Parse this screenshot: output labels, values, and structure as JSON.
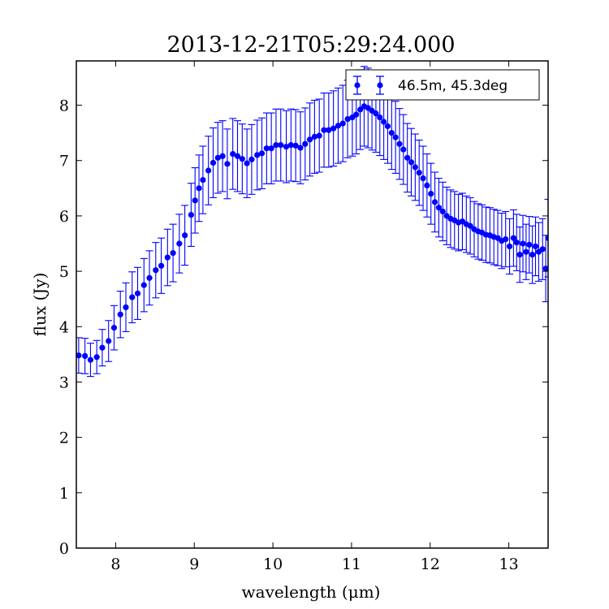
{
  "chart_data": {
    "type": "scatter",
    "title": "2013-12-21T05:29:24.000",
    "xlabel": "wavelength (μm)",
    "ylabel": "flux (Jy)",
    "xlim": [
      7.5,
      13.5
    ],
    "ylim": [
      0,
      8.8
    ],
    "xticks": [
      8,
      9,
      10,
      11,
      12,
      13
    ],
    "yticks": [
      0,
      1,
      2,
      3,
      4,
      5,
      6,
      7,
      8
    ],
    "grid": false,
    "legend_position": "top-right",
    "series": [
      {
        "name": "46.5m, 45.3deg",
        "color": "#0000ff",
        "marker": "circle",
        "error_bars": true,
        "points": [
          {
            "x": 7.53,
            "y": 3.48,
            "err": 0.32
          },
          {
            "x": 7.61,
            "y": 3.47,
            "err": 0.32
          },
          {
            "x": 7.68,
            "y": 3.4,
            "err": 0.3
          },
          {
            "x": 7.76,
            "y": 3.45,
            "err": 0.3
          },
          {
            "x": 7.83,
            "y": 3.62,
            "err": 0.33
          },
          {
            "x": 7.91,
            "y": 3.74,
            "err": 0.37
          },
          {
            "x": 7.98,
            "y": 3.98,
            "err": 0.4
          },
          {
            "x": 8.06,
            "y": 4.22,
            "err": 0.42
          },
          {
            "x": 8.13,
            "y": 4.35,
            "err": 0.44
          },
          {
            "x": 8.21,
            "y": 4.53,
            "err": 0.46
          },
          {
            "x": 8.28,
            "y": 4.6,
            "err": 0.47
          },
          {
            "x": 8.36,
            "y": 4.75,
            "err": 0.48
          },
          {
            "x": 8.43,
            "y": 4.88,
            "err": 0.49
          },
          {
            "x": 8.51,
            "y": 5.02,
            "err": 0.5
          },
          {
            "x": 8.58,
            "y": 5.1,
            "err": 0.5
          },
          {
            "x": 8.66,
            "y": 5.25,
            "err": 0.51
          },
          {
            "x": 8.73,
            "y": 5.33,
            "err": 0.52
          },
          {
            "x": 8.81,
            "y": 5.5,
            "err": 0.53
          },
          {
            "x": 8.88,
            "y": 5.65,
            "err": 0.54
          },
          {
            "x": 8.96,
            "y": 6.02,
            "err": 0.57
          },
          {
            "x": 9.01,
            "y": 6.28,
            "err": 0.59
          },
          {
            "x": 9.06,
            "y": 6.5,
            "err": 0.6
          },
          {
            "x": 9.11,
            "y": 6.65,
            "err": 0.61
          },
          {
            "x": 9.18,
            "y": 6.82,
            "err": 0.62
          },
          {
            "x": 9.24,
            "y": 6.96,
            "err": 0.63
          },
          {
            "x": 9.3,
            "y": 7.05,
            "err": 0.64
          },
          {
            "x": 9.36,
            "y": 7.08,
            "err": 0.64
          },
          {
            "x": 9.42,
            "y": 6.94,
            "err": 0.63
          },
          {
            "x": 9.49,
            "y": 7.12,
            "err": 0.64
          },
          {
            "x": 9.55,
            "y": 7.08,
            "err": 0.64
          },
          {
            "x": 9.61,
            "y": 7.03,
            "err": 0.63
          },
          {
            "x": 9.67,
            "y": 6.95,
            "err": 0.62
          },
          {
            "x": 9.73,
            "y": 7.02,
            "err": 0.63
          },
          {
            "x": 9.8,
            "y": 7.1,
            "err": 0.63
          },
          {
            "x": 9.86,
            "y": 7.13,
            "err": 0.64
          },
          {
            "x": 9.92,
            "y": 7.22,
            "err": 0.64
          },
          {
            "x": 9.98,
            "y": 7.22,
            "err": 0.64
          },
          {
            "x": 10.04,
            "y": 7.28,
            "err": 0.65
          },
          {
            "x": 10.1,
            "y": 7.28,
            "err": 0.65
          },
          {
            "x": 10.17,
            "y": 7.25,
            "err": 0.65
          },
          {
            "x": 10.23,
            "y": 7.28,
            "err": 0.65
          },
          {
            "x": 10.29,
            "y": 7.27,
            "err": 0.65
          },
          {
            "x": 10.35,
            "y": 7.23,
            "err": 0.65
          },
          {
            "x": 10.41,
            "y": 7.3,
            "err": 0.65
          },
          {
            "x": 10.47,
            "y": 7.38,
            "err": 0.66
          },
          {
            "x": 10.53,
            "y": 7.43,
            "err": 0.66
          },
          {
            "x": 10.59,
            "y": 7.45,
            "err": 0.66
          },
          {
            "x": 10.65,
            "y": 7.55,
            "err": 0.67
          },
          {
            "x": 10.71,
            "y": 7.55,
            "err": 0.67
          },
          {
            "x": 10.77,
            "y": 7.58,
            "err": 0.68
          },
          {
            "x": 10.83,
            "y": 7.63,
            "err": 0.68
          },
          {
            "x": 10.89,
            "y": 7.67,
            "err": 0.69
          },
          {
            "x": 10.95,
            "y": 7.75,
            "err": 0.7
          },
          {
            "x": 11.01,
            "y": 7.78,
            "err": 0.7
          },
          {
            "x": 11.06,
            "y": 7.83,
            "err": 0.71
          },
          {
            "x": 11.11,
            "y": 7.92,
            "err": 0.72
          },
          {
            "x": 11.16,
            "y": 7.98,
            "err": 0.72
          },
          {
            "x": 11.21,
            "y": 7.95,
            "err": 0.72
          },
          {
            "x": 11.26,
            "y": 7.9,
            "err": 0.71
          },
          {
            "x": 11.31,
            "y": 7.85,
            "err": 0.7
          },
          {
            "x": 11.36,
            "y": 7.78,
            "err": 0.69
          },
          {
            "x": 11.41,
            "y": 7.7,
            "err": 0.68
          },
          {
            "x": 11.46,
            "y": 7.62,
            "err": 0.67
          },
          {
            "x": 11.51,
            "y": 7.5,
            "err": 0.66
          },
          {
            "x": 11.56,
            "y": 7.42,
            "err": 0.65
          },
          {
            "x": 11.61,
            "y": 7.3,
            "err": 0.64
          },
          {
            "x": 11.66,
            "y": 7.2,
            "err": 0.63
          },
          {
            "x": 11.71,
            "y": 7.05,
            "err": 0.62
          },
          {
            "x": 11.76,
            "y": 6.97,
            "err": 0.61
          },
          {
            "x": 11.81,
            "y": 6.88,
            "err": 0.6
          },
          {
            "x": 11.86,
            "y": 6.78,
            "err": 0.59
          },
          {
            "x": 11.91,
            "y": 6.68,
            "err": 0.58
          },
          {
            "x": 11.96,
            "y": 6.55,
            "err": 0.57
          },
          {
            "x": 12.01,
            "y": 6.4,
            "err": 0.55
          },
          {
            "x": 12.06,
            "y": 6.25,
            "err": 0.54
          },
          {
            "x": 12.11,
            "y": 6.15,
            "err": 0.53
          },
          {
            "x": 12.16,
            "y": 6.08,
            "err": 0.53
          },
          {
            "x": 12.21,
            "y": 6.0,
            "err": 0.52
          },
          {
            "x": 12.26,
            "y": 5.95,
            "err": 0.52
          },
          {
            "x": 12.31,
            "y": 5.92,
            "err": 0.52
          },
          {
            "x": 12.36,
            "y": 5.88,
            "err": 0.51
          },
          {
            "x": 12.41,
            "y": 5.9,
            "err": 0.51
          },
          {
            "x": 12.46,
            "y": 5.85,
            "err": 0.51
          },
          {
            "x": 12.51,
            "y": 5.82,
            "err": 0.51
          },
          {
            "x": 12.56,
            "y": 5.76,
            "err": 0.5
          },
          {
            "x": 12.61,
            "y": 5.72,
            "err": 0.5
          },
          {
            "x": 12.66,
            "y": 5.7,
            "err": 0.5
          },
          {
            "x": 12.71,
            "y": 5.66,
            "err": 0.5
          },
          {
            "x": 12.76,
            "y": 5.65,
            "err": 0.5
          },
          {
            "x": 12.81,
            "y": 5.62,
            "err": 0.5
          },
          {
            "x": 12.86,
            "y": 5.6,
            "err": 0.5
          },
          {
            "x": 12.91,
            "y": 5.55,
            "err": 0.5
          },
          {
            "x": 12.96,
            "y": 5.58,
            "err": 0.5
          },
          {
            "x": 13.01,
            "y": 5.45,
            "err": 0.5
          },
          {
            "x": 13.06,
            "y": 5.6,
            "err": 0.51
          },
          {
            "x": 13.1,
            "y": 5.52,
            "err": 0.51
          },
          {
            "x": 13.14,
            "y": 5.3,
            "err": 0.5
          },
          {
            "x": 13.18,
            "y": 5.5,
            "err": 0.51
          },
          {
            "x": 13.22,
            "y": 5.35,
            "err": 0.5
          },
          {
            "x": 13.26,
            "y": 5.48,
            "err": 0.51
          },
          {
            "x": 13.3,
            "y": 5.3,
            "err": 0.52
          },
          {
            "x": 13.34,
            "y": 5.45,
            "err": 0.53
          },
          {
            "x": 13.38,
            "y": 5.35,
            "err": 0.53
          },
          {
            "x": 13.43,
            "y": 5.4,
            "err": 0.55
          },
          {
            "x": 13.47,
            "y": 5.05,
            "err": 0.6
          },
          {
            "x": 13.5,
            "y": 5.6,
            "err": 0.7
          }
        ]
      }
    ]
  }
}
